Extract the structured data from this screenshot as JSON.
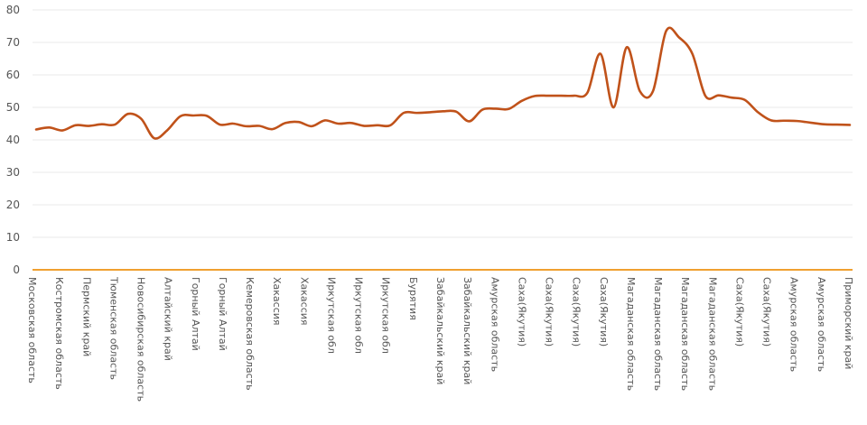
{
  "chart_data": {
    "type": "line",
    "title": "",
    "xlabel": "",
    "ylabel": "",
    "ylim": [
      0,
      80
    ],
    "yticks": [
      0,
      10,
      20,
      30,
      40,
      50,
      60,
      70,
      80
    ],
    "grid": true,
    "legend": "none",
    "tick_labels": [
      "Московская область",
      "Костромская область",
      "Пермский край",
      "Тюменская область",
      "Новосибирская область",
      "Алтайский край",
      "Горный Алтай",
      "Горный Алтай",
      "Кемеровская область",
      "Хакассия",
      "Хакассия",
      "Иркутская обл",
      "Иркутская обл",
      "Иркутская обл",
      "Бурятия",
      "Забайкальский край",
      "Забайкальский край",
      "Амурская область",
      "Саха(Якутия)",
      "Саха(Якутия)",
      "Саха(Якутия)",
      "Саха(Якутия)",
      "Магаданская область",
      "Магаданская область",
      "Магаданская область",
      "Магаданская область",
      "Саха(Якутия)",
      "Саха(Якутия)",
      "Амурская область",
      "Амурская область",
      "Приморский край"
    ],
    "series": [
      {
        "color": "#c0521a",
        "values": [
          43.2,
          43.8,
          42.9,
          44.5,
          44.3,
          44.8,
          44.7,
          48.0,
          46.5,
          40.5,
          43.0,
          47.3,
          47.5,
          47.4,
          44.7,
          45.0,
          44.2,
          44.3,
          43.3,
          45.2,
          45.5,
          44.2,
          46.0,
          45.0,
          45.2,
          44.3,
          44.5,
          44.5,
          48.3,
          48.3,
          48.5,
          48.8,
          48.7,
          45.7,
          49.3,
          49.6,
          49.5,
          52.0,
          53.5,
          53.6,
          53.6,
          53.6,
          54.5,
          66.5,
          50.0,
          68.5,
          55.0,
          55.0,
          73.5,
          71.5,
          66.5,
          53.5,
          53.7,
          53.0,
          52.3,
          48.5,
          46.0,
          45.9,
          45.8,
          45.3,
          44.8,
          44.7,
          44.6
        ]
      }
    ],
    "axis_color": "#f0a030"
  }
}
